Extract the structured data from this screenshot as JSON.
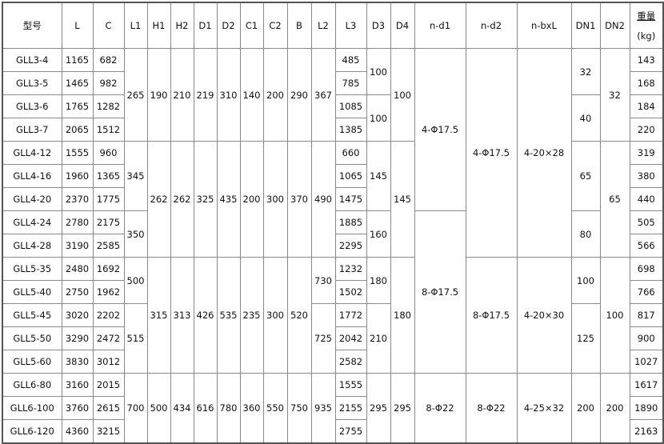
{
  "table": {
    "columns": [
      {
        "key": "model",
        "header": "型号",
        "cells": [
          {
            "v": "GLL3-4"
          },
          {
            "v": "GLL3-5"
          },
          {
            "v": "GLL3-6"
          },
          {
            "v": "GLL3-7"
          },
          {
            "v": "GLL4-12"
          },
          {
            "v": "GLL4-16"
          },
          {
            "v": "GLL4-20"
          },
          {
            "v": "GLL4-24"
          },
          {
            "v": "GLL4-28"
          },
          {
            "v": "GLL5-35"
          },
          {
            "v": "GLL5-40"
          },
          {
            "v": "GLL5-45"
          },
          {
            "v": "GLL5-50"
          },
          {
            "v": "GLL5-60"
          },
          {
            "v": "GLL6-80"
          },
          {
            "v": "GLL6-100"
          },
          {
            "v": "GLL6-120"
          }
        ]
      },
      {
        "key": "L",
        "header": "L",
        "cells": [
          {
            "v": "1165"
          },
          {
            "v": "1465"
          },
          {
            "v": "1765"
          },
          {
            "v": "2065"
          },
          {
            "v": "1555"
          },
          {
            "v": "1960"
          },
          {
            "v": "2370"
          },
          {
            "v": "2780"
          },
          {
            "v": "3190"
          },
          {
            "v": "2480"
          },
          {
            "v": "2750"
          },
          {
            "v": "3020"
          },
          {
            "v": "3290"
          },
          {
            "v": "3830"
          },
          {
            "v": "3160"
          },
          {
            "v": "3760"
          },
          {
            "v": "4360"
          }
        ]
      },
      {
        "key": "C",
        "header": "C",
        "cells": [
          {
            "v": "682"
          },
          {
            "v": "982"
          },
          {
            "v": "1282"
          },
          {
            "v": "1512"
          },
          {
            "v": "960"
          },
          {
            "v": "1365"
          },
          {
            "v": "1775"
          },
          {
            "v": "2175"
          },
          {
            "v": "2585"
          },
          {
            "v": "1692"
          },
          {
            "v": "1962"
          },
          {
            "v": "2202"
          },
          {
            "v": "2472"
          },
          {
            "v": "3012"
          },
          {
            "v": "2015"
          },
          {
            "v": "2615"
          },
          {
            "v": "3215"
          }
        ]
      },
      {
        "key": "L1",
        "header": "L1",
        "cells": [
          {
            "v": "265",
            "span": 4
          },
          {
            "v": "345",
            "span": 3
          },
          {
            "v": "350",
            "span": 2
          },
          {
            "v": "500",
            "span": 2
          },
          {
            "v": "515",
            "span": 3
          },
          {
            "v": "700",
            "span": 3
          }
        ]
      },
      {
        "key": "H1",
        "header": "H1",
        "cells": [
          {
            "v": "190",
            "span": 4
          },
          {
            "v": "262",
            "span": 5
          },
          {
            "v": "315",
            "span": 5
          },
          {
            "v": "500",
            "span": 3
          }
        ]
      },
      {
        "key": "H2",
        "header": "H2",
        "cells": [
          {
            "v": "210",
            "span": 4
          },
          {
            "v": "262",
            "span": 5
          },
          {
            "v": "313",
            "span": 5
          },
          {
            "v": "434",
            "span": 3
          }
        ]
      },
      {
        "key": "D1",
        "header": "D1",
        "cells": [
          {
            "v": "219",
            "span": 4
          },
          {
            "v": "325",
            "span": 5
          },
          {
            "v": "426",
            "span": 5
          },
          {
            "v": "616",
            "span": 3
          }
        ]
      },
      {
        "key": "D2",
        "header": "D2",
        "cells": [
          {
            "v": "310",
            "span": 4
          },
          {
            "v": "435",
            "span": 5
          },
          {
            "v": "535",
            "span": 5
          },
          {
            "v": "780",
            "span": 3
          }
        ]
      },
      {
        "key": "C1",
        "header": "C1",
        "cells": [
          {
            "v": "140",
            "span": 4
          },
          {
            "v": "200",
            "span": 5
          },
          {
            "v": "235",
            "span": 5
          },
          {
            "v": "360",
            "span": 3
          }
        ]
      },
      {
        "key": "C2",
        "header": "C2",
        "cells": [
          {
            "v": "200",
            "span": 4
          },
          {
            "v": "300",
            "span": 5
          },
          {
            "v": "300",
            "span": 5
          },
          {
            "v": "550",
            "span": 3
          }
        ]
      },
      {
        "key": "B",
        "header": "B",
        "cells": [
          {
            "v": "290",
            "span": 4
          },
          {
            "v": "370",
            "span": 5
          },
          {
            "v": "520",
            "span": 5
          },
          {
            "v": "750",
            "span": 3
          }
        ]
      },
      {
        "key": "L2",
        "header": "L2",
        "cells": [
          {
            "v": "367",
            "span": 4
          },
          {
            "v": "490",
            "span": 5
          },
          {
            "v": "730",
            "span": 2
          },
          {
            "v": "725",
            "span": 3
          },
          {
            "v": "935",
            "span": 3
          }
        ]
      },
      {
        "key": "L3",
        "header": "L3",
        "cells": [
          {
            "v": "485"
          },
          {
            "v": "785"
          },
          {
            "v": "1085"
          },
          {
            "v": "1385"
          },
          {
            "v": "660"
          },
          {
            "v": "1065"
          },
          {
            "v": "1475"
          },
          {
            "v": "1885"
          },
          {
            "v": "2295"
          },
          {
            "v": "1232"
          },
          {
            "v": "1502"
          },
          {
            "v": "1772"
          },
          {
            "v": "2042"
          },
          {
            "v": "2582"
          },
          {
            "v": "1555"
          },
          {
            "v": "2155"
          },
          {
            "v": "2755"
          }
        ]
      },
      {
        "key": "D3",
        "header": "D3",
        "cells": [
          {
            "v": "100",
            "span": 2
          },
          {
            "v": "100",
            "span": 2
          },
          {
            "v": "145",
            "span": 3
          },
          {
            "v": "160",
            "span": 2
          },
          {
            "v": "180",
            "span": 2
          },
          {
            "v": "210",
            "span": 3
          },
          {
            "v": "295",
            "span": 3
          }
        ]
      },
      {
        "key": "D4",
        "header": "D4",
        "cells": [
          {
            "v": "100",
            "span": 4
          },
          {
            "v": "145",
            "span": 5
          },
          {
            "v": "180",
            "span": 5
          },
          {
            "v": "295",
            "span": 3
          }
        ]
      },
      {
        "key": "nd1",
        "header": "n-d1",
        "cells": [
          {
            "v": "4-Φ17.5",
            "span": 7
          },
          {
            "v": "8-Φ17.5",
            "span": 7
          },
          {
            "v": "8-Φ22",
            "span": 3
          }
        ]
      },
      {
        "key": "nd2",
        "header": "n-d2",
        "cells": [
          {
            "v": "4-Φ17.5",
            "span": 9
          },
          {
            "v": "8-Φ17.5",
            "span": 5
          },
          {
            "v": "8-Φ22",
            "span": 3
          }
        ]
      },
      {
        "key": "nbxL",
        "header": "n-bxL",
        "cells": [
          {
            "v": "4-20×28",
            "span": 9
          },
          {
            "v": "4-20×30",
            "span": 5
          },
          {
            "v": "4-25×32",
            "span": 3
          }
        ]
      },
      {
        "key": "DN1",
        "header": "DN1",
        "cells": [
          {
            "v": "32",
            "span": 2
          },
          {
            "v": "40",
            "span": 2
          },
          {
            "v": "65",
            "span": 3
          },
          {
            "v": "80",
            "span": 2
          },
          {
            "v": "100",
            "span": 2
          },
          {
            "v": "125",
            "span": 3
          },
          {
            "v": "200",
            "span": 3
          }
        ]
      },
      {
        "key": "DN2",
        "header": "DN2",
        "cells": [
          {
            "v": "32",
            "span": 4
          },
          {
            "v": "65",
            "span": 5
          },
          {
            "v": "100",
            "span": 5
          },
          {
            "v": "200",
            "span": 3
          }
        ]
      },
      {
        "key": "weight",
        "header": "重量",
        "subheader": "(kg)",
        "cells": [
          {
            "v": "143"
          },
          {
            "v": "168"
          },
          {
            "v": "184"
          },
          {
            "v": "220"
          },
          {
            "v": "319"
          },
          {
            "v": "380"
          },
          {
            "v": "440"
          },
          {
            "v": "505"
          },
          {
            "v": "566"
          },
          {
            "v": "698"
          },
          {
            "v": "766"
          },
          {
            "v": "817"
          },
          {
            "v": "900"
          },
          {
            "v": "1027"
          },
          {
            "v": "1617"
          },
          {
            "v": "1890"
          },
          {
            "v": "2163"
          }
        ]
      }
    ]
  }
}
